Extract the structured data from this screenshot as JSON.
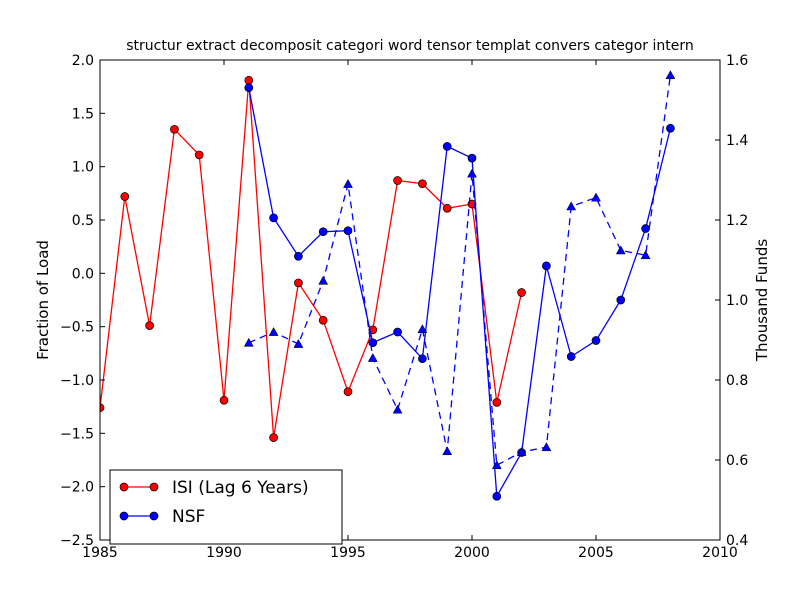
{
  "chart_data": {
    "type": "line",
    "title": "structur extract decomposit categori word tensor templat convers categor intern",
    "xlabel": "",
    "ylabel": "Fraction of Load",
    "y2label": "Thousand Funds",
    "xlim": [
      1985,
      2010
    ],
    "ylim": [
      -2.5,
      2.0
    ],
    "y2lim": [
      0.4,
      1.6
    ],
    "x_ticks": [
      1985,
      1990,
      1995,
      2000,
      2005,
      2010
    ],
    "y_ticks": [
      -2.5,
      -2.0,
      -1.5,
      -1.0,
      -0.5,
      0.0,
      0.5,
      1.0,
      1.5,
      2.0
    ],
    "y2_ticks": [
      0.4,
      0.6,
      0.8,
      1.0,
      1.2,
      1.4,
      1.6
    ],
    "x_tick_labels": [
      "1985",
      "1990",
      "1995",
      "2000",
      "2005",
      "2010"
    ],
    "y_tick_labels": [
      "−2.5",
      "−2.0",
      "−1.5",
      "−1.0",
      "−0.5",
      "0.0",
      "0.5",
      "1.0",
      "1.5",
      "2.0"
    ],
    "y2_tick_labels": [
      "0.4",
      "0.6",
      "0.8",
      "1.0",
      "1.2",
      "1.4",
      "1.6"
    ],
    "legend_position": "lower-left",
    "series": [
      {
        "name": "ISI (Lag 6 Years)",
        "axis": "left",
        "color": "#ff0000",
        "marker": "circle",
        "linestyle": "solid",
        "show_in_legend": true,
        "x": [
          1985,
          1986,
          1987,
          1988,
          1989,
          1990,
          1991,
          1992,
          1993,
          1994,
          1995,
          1996,
          1997,
          1998,
          1999,
          2000,
          2001,
          2002
        ],
        "y": [
          -1.26,
          0.72,
          -0.49,
          1.35,
          1.11,
          -1.19,
          1.81,
          -1.54,
          -0.09,
          -0.44,
          -1.11,
          -0.53,
          0.87,
          0.84,
          0.61,
          0.65,
          -1.21,
          -0.18
        ]
      },
      {
        "name": "NSF",
        "axis": "left",
        "color": "#0000ff",
        "marker": "circle",
        "linestyle": "solid",
        "show_in_legend": true,
        "x": [
          1991,
          1992,
          1993,
          1994,
          1995,
          1996,
          1997,
          1998,
          1999,
          2000,
          2001,
          2002,
          2003,
          2004,
          2005,
          2006,
          2007,
          2008
        ],
        "y": [
          1.74,
          0.52,
          0.16,
          0.39,
          0.4,
          -0.65,
          -0.55,
          -0.8,
          1.19,
          1.08,
          -2.09,
          -1.68,
          0.07,
          -0.78,
          -0.63,
          -0.25,
          0.42,
          1.36
        ]
      },
      {
        "name": "",
        "axis": "right",
        "color": "#0000ff",
        "marker": "triangle",
        "linestyle": "dashed",
        "show_in_legend": false,
        "x": [
          1991,
          1992,
          1993,
          1994,
          1995,
          1996,
          1997,
          1998,
          1999,
          2000,
          2001,
          2002,
          2003,
          2004,
          2005,
          2006,
          2007,
          2008
        ],
        "y": [
          0.893,
          0.92,
          0.89,
          1.048,
          1.29,
          0.855,
          0.726,
          0.927,
          0.622,
          1.316,
          0.587,
          0.62,
          0.632,
          1.234,
          1.256,
          1.124,
          1.112,
          1.562
        ]
      }
    ]
  }
}
